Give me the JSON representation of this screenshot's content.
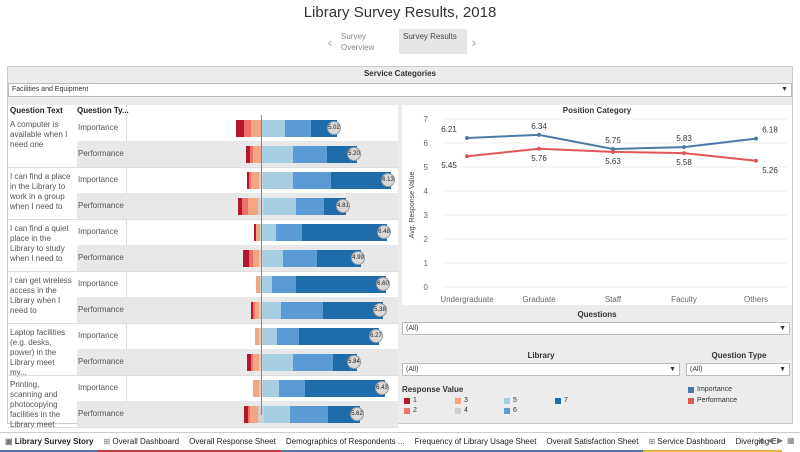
{
  "title": "Library Survey Results, 2018",
  "story_nav": [
    {
      "label": "Survey Overview",
      "active": false
    },
    {
      "label": "Survey Results",
      "active": true
    }
  ],
  "service_categories": {
    "header": "Service Categories",
    "value": "Facilities and Equipment"
  },
  "table": {
    "col_question": "Question Text",
    "col_type": "Question Ty...",
    "rows": [
      {
        "question": "A computer is available when I need one",
        "importance": "5.02",
        "performance": "5.20"
      },
      {
        "question": "I can find a place in the Library to work in a group when I need to",
        "importance": "6.13",
        "performance": "4.81"
      },
      {
        "question": "I can find a quiet place in the Library to study when I need to",
        "importance": "6.48",
        "performance": "4.99"
      },
      {
        "question": "I can get wireless access in the Library when I need to",
        "importance": "6.60",
        "performance": "5.38"
      },
      {
        "question": "Laptop facilities (e.g. desks, power) in the Library meet my...",
        "importance": "6.27",
        "performance": "5.84"
      },
      {
        "question": "Printing, scanning and photocopying facilities in the Library meet my...",
        "importance": "6.43",
        "performance": "5.62"
      }
    ],
    "importance_label": "Importance",
    "performance_label": "Performance"
  },
  "chart_data": {
    "type": "line",
    "title": "Position Category",
    "categories": [
      "Undergraduate",
      "Graduate",
      "Staff",
      "Faculty",
      "Others"
    ],
    "ylabel": "Avg. Response Value",
    "ylim": [
      0,
      7
    ],
    "yticks": [
      "0",
      "1",
      "2",
      "3",
      "4",
      "5",
      "6",
      "7"
    ],
    "series": [
      {
        "name": "Importance",
        "color": "#4e79a7",
        "values": [
          6.21,
          6.34,
          5.75,
          5.83,
          6.18
        ],
        "labels": [
          "6.21",
          "6.34",
          "5.75",
          "5.83",
          "6.18"
        ]
      },
      {
        "name": "Performance",
        "color": "#e15759",
        "values": [
          5.45,
          5.76,
          5.63,
          5.58,
          5.26
        ],
        "labels": [
          "5.45",
          "5.76",
          "5.63",
          "5.58",
          "5.26"
        ]
      }
    ]
  },
  "filters": {
    "questions": {
      "header": "Questions",
      "value": "(All)"
    },
    "library": {
      "header": "Library",
      "value": "(All)"
    },
    "question_type": {
      "header": "Question Type",
      "value": "(All)"
    }
  },
  "response_value": {
    "header": "Response Value",
    "items": [
      {
        "label": "1",
        "color": "#b2182b"
      },
      {
        "label": "2",
        "color": "#ef6f6a"
      },
      {
        "label": "3",
        "color": "#f4a582"
      },
      {
        "label": "4",
        "color": "#d0d0d0"
      },
      {
        "label": "5",
        "color": "#a6cee3"
      },
      {
        "label": "6",
        "color": "#5b9bd5"
      },
      {
        "label": "7",
        "color": "#1f6cab"
      }
    ]
  },
  "type_legend": [
    {
      "label": "Importance",
      "color": "#4e79a7"
    },
    {
      "label": "Performance",
      "color": "#e15759"
    }
  ],
  "tabs": [
    {
      "label": "Library Survey Story",
      "active": true,
      "icon": "story-icon",
      "color": "#4e79a7"
    },
    {
      "label": "Overall Dashboard",
      "active": false,
      "icon": "dashboard-icon",
      "color": "#c23b3b"
    },
    {
      "label": "Overall Response Sheet",
      "active": false,
      "icon": "",
      "color": "#c23b3b"
    },
    {
      "label": "Demographics of Respondents ...",
      "active": false,
      "icon": "",
      "color": "#4e79a7"
    },
    {
      "label": "Frequency of Library Usage Sheet",
      "active": false,
      "icon": "",
      "color": "#4e79a7"
    },
    {
      "label": "Overall Satisfaction Sheet",
      "active": false,
      "icon": "",
      "color": "#4e79a7"
    },
    {
      "label": "Service Dashboard",
      "active": false,
      "icon": "dashboard-icon",
      "color": "#e8b33a"
    },
    {
      "label": "Diverging E",
      "active": false,
      "icon": "",
      "color": "#e8b33a"
    }
  ]
}
